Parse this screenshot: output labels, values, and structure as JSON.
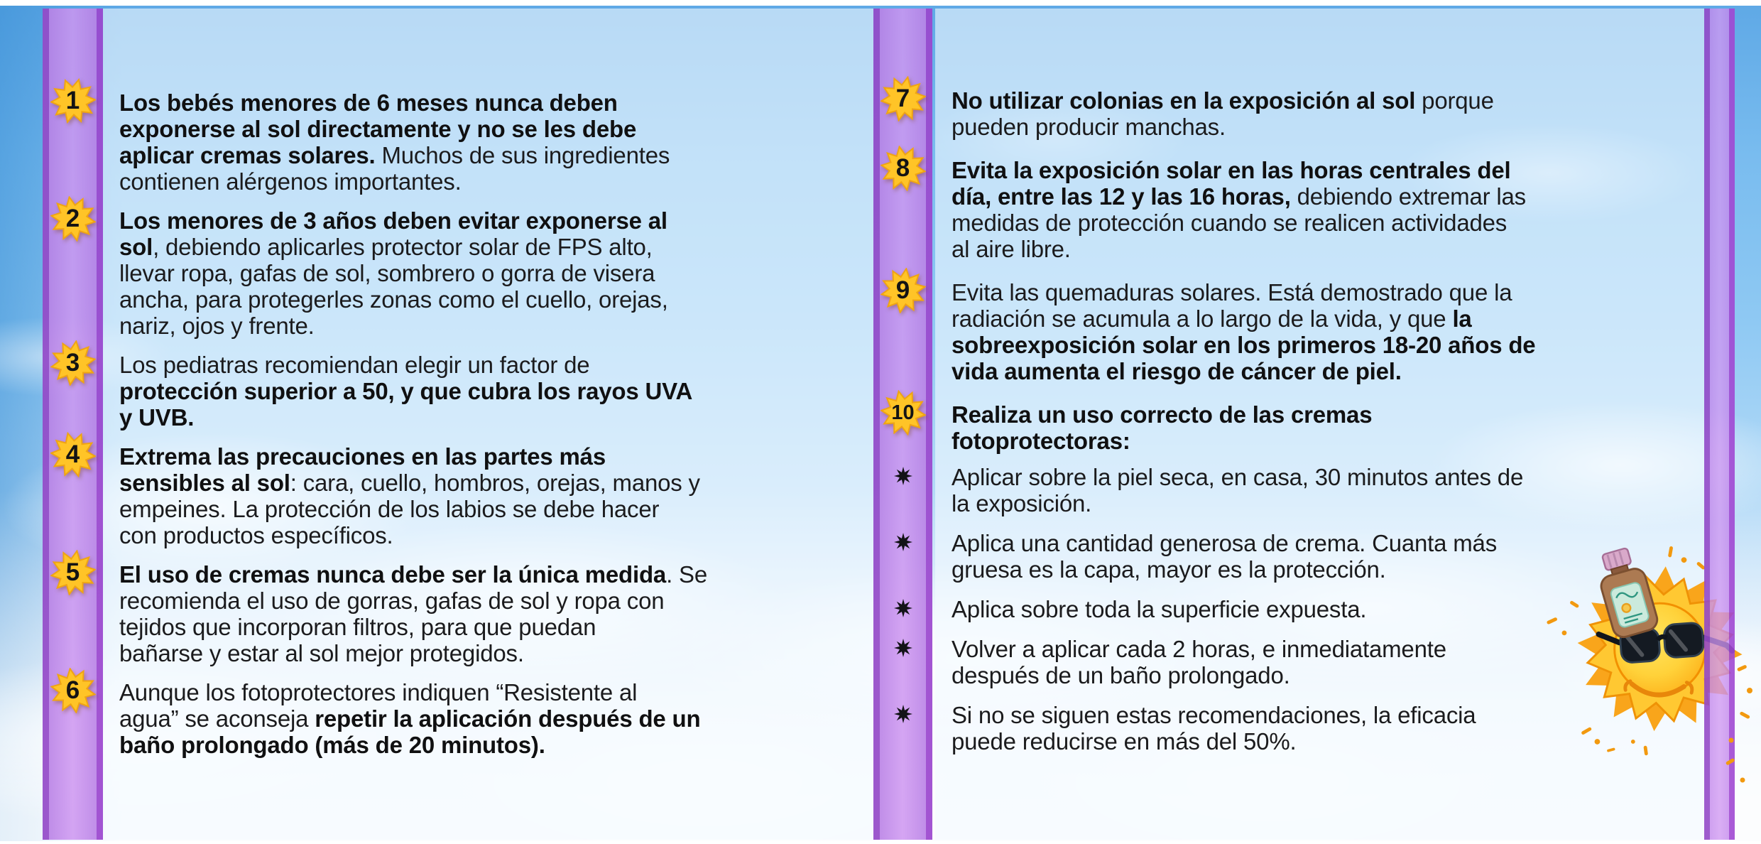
{
  "language": "es",
  "colors": {
    "sky_top": "#5FA9E6",
    "sky_bottom": "#F5F9FD",
    "panel_tint": "#E9F3FC",
    "ribbon_fill": "#C68AEB",
    "ribbon_edge": "#9449C8",
    "badge_yellow": "#FFC427",
    "badge_outline": "#EFA413",
    "body_text": "#1B1B1D",
    "bullet_black": "#131317"
  },
  "icons": {
    "badge_shape": "ten-point-sun-star-badge",
    "bullet_shape": "black-eight-point-star-bullet",
    "clipart": "cartoon-sun-wearing-sunglasses-holding-sunscreen-bottle"
  },
  "columns": [
    {
      "id": "left",
      "items": [
        {
          "num": "1",
          "lines": [
            [
              [
                "b",
                "Los bebés menores de 6 meses nunca deben"
              ]
            ],
            [
              [
                "b",
                "exponerse al sol directamente y no se les debe"
              ]
            ],
            [
              [
                "b",
                "aplicar cremas solares."
              ],
              [
                "n",
                " Muchos de sus ingredientes"
              ]
            ],
            [
              [
                "n",
                "contienen alérgenos importantes."
              ]
            ]
          ]
        },
        {
          "num": "2",
          "lines": [
            [
              [
                "b",
                "Los menores de 3 años deben evitar exponerse al"
              ]
            ],
            [
              [
                "b",
                "sol"
              ],
              [
                "n",
                ", debiendo aplicarles protector solar de FPS alto,"
              ]
            ],
            [
              [
                "n",
                "llevar ropa, gafas de sol, sombrero o gorra de visera"
              ]
            ],
            [
              [
                "n",
                "ancha, para protegerles zonas como el cuello, orejas,"
              ]
            ],
            [
              [
                "n",
                "nariz, ojos y frente."
              ]
            ]
          ]
        },
        {
          "num": "3",
          "lines": [
            [
              [
                "n",
                "Los pediatras recomiendan elegir un factor de"
              ]
            ],
            [
              [
                "b",
                "protección superior a 50, y que cubra los rayos UVA"
              ]
            ],
            [
              [
                "b",
                "y UVB."
              ]
            ]
          ]
        },
        {
          "num": "4",
          "lines": [
            [
              [
                "b",
                "Extrema las precauciones en las partes más"
              ]
            ],
            [
              [
                "b",
                "sensibles al sol"
              ],
              [
                "n",
                ": cara, cuello, hombros, orejas, manos y"
              ]
            ],
            [
              [
                "n",
                "empeines. La protección de los labios se debe hacer"
              ]
            ],
            [
              [
                "n",
                "con productos específicos."
              ]
            ]
          ]
        },
        {
          "num": "5",
          "lines": [
            [
              [
                "b",
                "El uso de cremas nunca debe ser la única medida"
              ],
              [
                "n",
                ". Se"
              ]
            ],
            [
              [
                "n",
                "recomienda el uso de gorras, gafas de sol y ropa con"
              ]
            ],
            [
              [
                "n",
                "tejidos que incorporan filtros, para que puedan"
              ]
            ],
            [
              [
                "n",
                "bañarse y estar al sol mejor protegidos."
              ]
            ]
          ]
        },
        {
          "num": "6",
          "lines": [
            [
              [
                "n",
                "Aunque los fotoprotectores indiquen “Resistente al"
              ]
            ],
            [
              [
                "n",
                "agua” se aconseja "
              ],
              [
                "b",
                "repetir la aplicación después de un"
              ]
            ],
            [
              [
                "b",
                "baño prolongado (más de 20 minutos)."
              ]
            ]
          ]
        }
      ]
    },
    {
      "id": "right",
      "items": [
        {
          "num": "7",
          "lines": [
            [
              [
                "b",
                "No utilizar colonias en la exposición al sol"
              ],
              [
                "n",
                " porque"
              ]
            ],
            [
              [
                "n",
                "pueden producir manchas."
              ]
            ]
          ]
        },
        {
          "num": "8",
          "lines": [
            [
              [
                "b",
                "Evita la exposición solar en las horas centrales del"
              ]
            ],
            [
              [
                "b",
                "día, entre las 12 y las 16 horas,"
              ],
              [
                "n",
                " debiendo extremar las"
              ]
            ],
            [
              [
                "n",
                "medidas de protección cuando se realicen actividades"
              ]
            ],
            [
              [
                "n",
                "al aire libre."
              ]
            ]
          ]
        },
        {
          "num": "9",
          "lines": [
            [
              [
                "n",
                "Evita las quemaduras solares. Está demostrado que la"
              ]
            ],
            [
              [
                "n",
                "radiación se acumula a lo largo de la vida, y que "
              ],
              [
                "b",
                "la"
              ]
            ],
            [
              [
                "b",
                "sobreexposición solar en los primeros 18-20 años de"
              ]
            ],
            [
              [
                "b",
                "vida aumenta el riesgo de cáncer de piel."
              ]
            ]
          ]
        },
        {
          "num": "10",
          "lines": [
            [
              [
                "b",
                "Realiza un uso correcto de las cremas"
              ]
            ],
            [
              [
                "b",
                "fotoprotectoras:"
              ]
            ]
          ]
        },
        {
          "lines": [
            [
              [
                "n",
                "Aplicar sobre la piel seca, en casa, 30 minutos antes de"
              ]
            ],
            [
              [
                "n",
                "la exposición."
              ]
            ]
          ]
        },
        {
          "lines": [
            [
              [
                "n",
                "Aplica una cantidad generosa de crema. Cuanta más"
              ]
            ],
            [
              [
                "n",
                "gruesa es la capa, mayor es la protección."
              ]
            ]
          ]
        },
        {
          "lines": [
            [
              [
                "n",
                "Aplica sobre toda la superficie expuesta."
              ]
            ]
          ]
        },
        {
          "lines": [
            [
              [
                "n",
                "Volver a aplicar cada 2 horas, e inmediatamente"
              ]
            ],
            [
              [
                "n",
                "después de un baño prolongado."
              ]
            ]
          ]
        },
        {
          "lines": [
            [
              [
                "n",
                "Si no se siguen estas recomendaciones, la eficacia"
              ]
            ],
            [
              [
                "n",
                "puede reducirse en más del 50%."
              ]
            ]
          ]
        }
      ]
    }
  ]
}
